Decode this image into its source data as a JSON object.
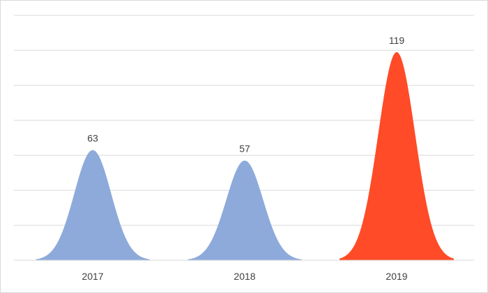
{
  "chart_data": {
    "type": "area",
    "categories": [
      "2017",
      "2018",
      "2019"
    ],
    "values": [
      63,
      57,
      119
    ],
    "data_labels": [
      "63",
      "57",
      "119"
    ],
    "ylim": [
      0,
      140
    ],
    "grid": true,
    "colors": {
      "default": "#8eaadb",
      "highlight": "#ff4b27",
      "grid": "#d9d9d9",
      "label": "#404040"
    },
    "highlight_index": 2
  }
}
